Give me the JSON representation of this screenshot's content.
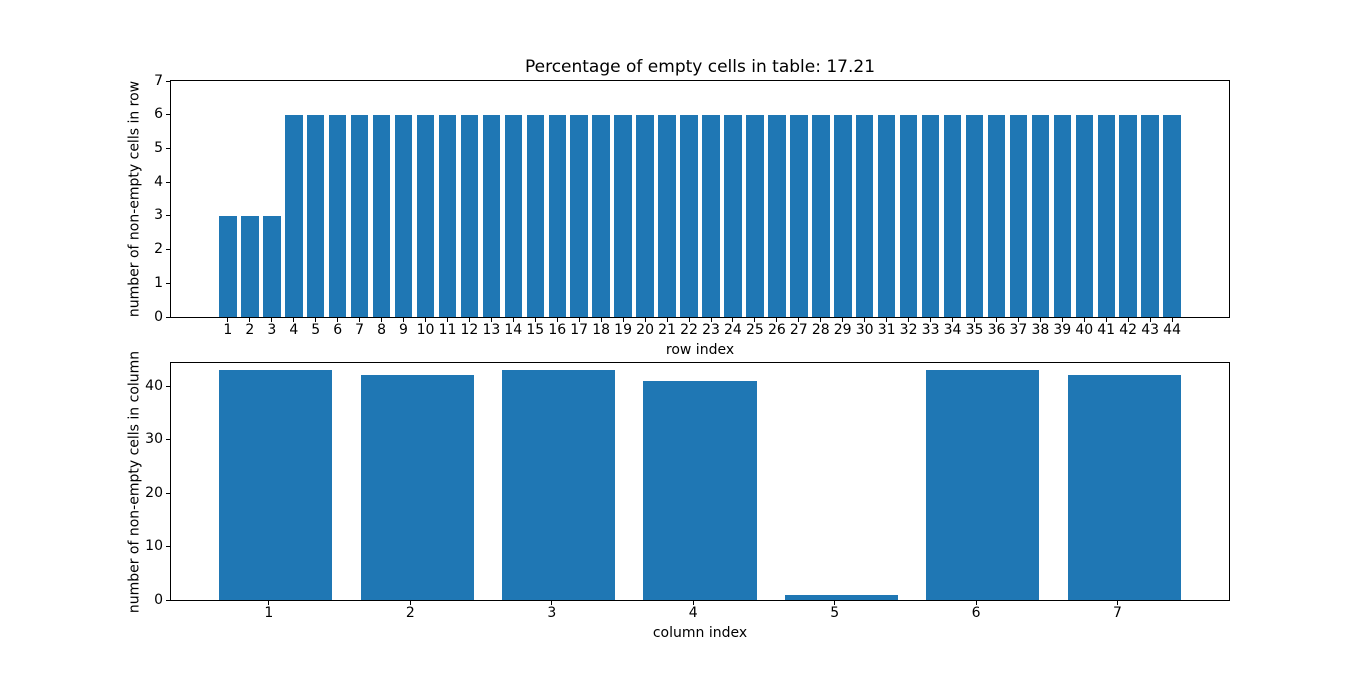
{
  "figure": {
    "background": "#ffffff",
    "bar_color": "#1f77b4",
    "spine_color": "#000000",
    "text_color": "#000000"
  },
  "chart_data": [
    {
      "type": "bar",
      "title": "Percentage of empty cells in table: 17.21",
      "xlabel": "row index",
      "ylabel": "number of non-empty cells in row",
      "categories": [
        1,
        2,
        3,
        4,
        5,
        6,
        7,
        8,
        9,
        10,
        11,
        12,
        13,
        14,
        15,
        16,
        17,
        18,
        19,
        20,
        21,
        22,
        23,
        24,
        25,
        26,
        27,
        28,
        29,
        30,
        31,
        32,
        33,
        34,
        35,
        36,
        37,
        38,
        39,
        40,
        41,
        42,
        43,
        44
      ],
      "values": [
        3,
        3,
        3,
        6,
        6,
        6,
        6,
        6,
        6,
        6,
        6,
        6,
        6,
        6,
        6,
        6,
        6,
        6,
        6,
        6,
        6,
        6,
        6,
        6,
        6,
        6,
        6,
        6,
        6,
        6,
        6,
        6,
        6,
        6,
        6,
        6,
        6,
        6,
        6,
        6,
        6,
        6,
        6,
        6
      ],
      "xlim": [
        -1.59,
        46.59
      ],
      "ylim": [
        0,
        7
      ],
      "yticks": [
        0,
        1,
        2,
        3,
        4,
        5,
        6,
        7
      ],
      "bar_width": 0.8,
      "xtick_offset": 0,
      "grid": false
    },
    {
      "type": "bar",
      "title": "",
      "xlabel": "column index",
      "ylabel": "number of non-empty cells in column",
      "categories": [
        1,
        2,
        3,
        4,
        5,
        6,
        7
      ],
      "values": [
        43,
        42,
        43,
        41,
        1,
        43,
        42
      ],
      "xlim": [
        0.26,
        7.74
      ],
      "ylim": [
        0,
        44.3
      ],
      "yticks": [
        0,
        10,
        20,
        30,
        40
      ],
      "bar_width": 0.8,
      "xtick_offset": -0.048,
      "grid": false
    }
  ]
}
